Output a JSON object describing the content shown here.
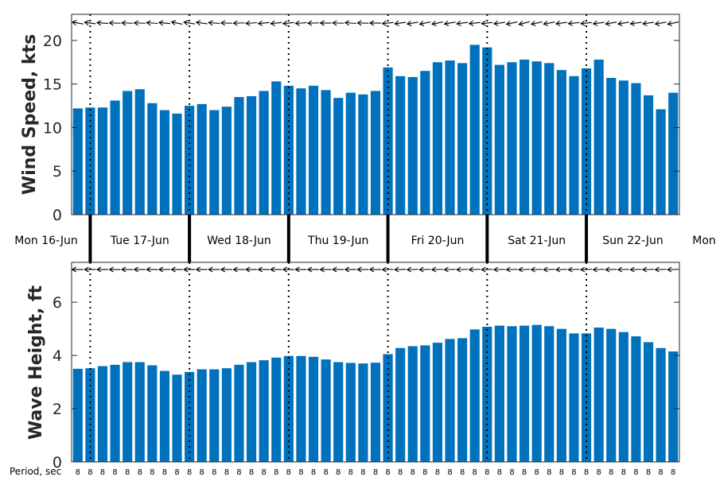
{
  "chart_data": [
    {
      "type": "bar",
      "name": "wind-speed",
      "ylabel": "Wind Speed, kts",
      "ylim": [
        0,
        23
      ],
      "yticks": [
        0,
        5,
        10,
        15,
        20
      ],
      "color": "#0072BD",
      "values": [
        12.2,
        12.3,
        12.3,
        13.1,
        14.2,
        14.4,
        12.8,
        12.0,
        11.6,
        12.5,
        12.7,
        12.0,
        12.4,
        13.5,
        13.6,
        14.2,
        15.3,
        14.8,
        14.5,
        14.8,
        14.3,
        13.4,
        14.0,
        13.8,
        14.2,
        16.9,
        15.9,
        15.8,
        16.5,
        17.5,
        17.7,
        17.4,
        19.5,
        19.2,
        17.2,
        17.5,
        17.8,
        17.6,
        17.4,
        16.6,
        15.9,
        16.8,
        17.8,
        15.7,
        15.4,
        15.1,
        13.7,
        12.1,
        14.0
      ]
    },
    {
      "type": "bar",
      "name": "wave-height",
      "ylabel": "Wave Height, ft",
      "ylim": [
        0,
        7.5
      ],
      "yticks": [
        0,
        2,
        4,
        6
      ],
      "color": "#0072BD",
      "values": [
        3.5,
        3.52,
        3.6,
        3.65,
        3.75,
        3.75,
        3.63,
        3.42,
        3.28,
        3.38,
        3.48,
        3.48,
        3.52,
        3.65,
        3.75,
        3.82,
        3.92,
        3.98,
        3.98,
        3.95,
        3.85,
        3.75,
        3.72,
        3.7,
        3.73,
        4.05,
        4.28,
        4.35,
        4.38,
        4.48,
        4.62,
        4.65,
        4.98,
        5.08,
        5.12,
        5.1,
        5.12,
        5.15,
        5.1,
        5.0,
        4.83,
        4.83,
        5.05,
        5.0,
        4.88,
        4.72,
        4.5,
        4.28,
        4.15
      ]
    }
  ],
  "days": [
    "Mon 16-Jun",
    "Tue 17-Jun",
    "Wed 18-Jun",
    "Thu 19-Jun",
    "Fri 20-Jun",
    "Sat 21-Jun",
    "Sun 22-Jun",
    "Mon"
  ],
  "period_label": "Period, sec",
  "period_values": [
    8,
    8,
    8,
    8,
    8,
    8,
    8,
    8,
    8,
    8,
    8,
    8,
    8,
    8,
    8,
    8,
    8,
    8,
    8,
    8,
    8,
    8,
    8,
    8,
    8,
    8,
    8,
    8,
    8,
    8,
    8,
    8,
    8,
    8,
    8,
    8,
    8,
    8,
    8,
    8,
    8,
    8,
    8,
    8,
    8,
    8,
    8,
    8,
    8
  ],
  "wind_direction_angles": [
    10,
    8,
    5,
    2,
    2,
    2,
    4,
    6,
    12,
    10,
    8,
    4,
    2,
    -2,
    -4,
    -6,
    -6,
    -6,
    -4,
    -2,
    0,
    2,
    4,
    2,
    0,
    -6,
    -8,
    -10,
    -12,
    -12,
    -10,
    -8,
    -6,
    -6,
    -8,
    -12,
    -14,
    -12,
    -10,
    -8,
    -6,
    -6,
    -8,
    -10,
    -10,
    -8,
    -8,
    -10,
    -12
  ],
  "wave_direction_angles": [
    0,
    0,
    0,
    0,
    0,
    0,
    0,
    0,
    0,
    0,
    0,
    0,
    0,
    0,
    0,
    0,
    0,
    0,
    0,
    0,
    0,
    0,
    0,
    0,
    0,
    -2,
    -2,
    -2,
    -2,
    -2,
    -2,
    -2,
    -2,
    -2,
    -2,
    -2,
    -2,
    -2,
    -2,
    -2,
    -2,
    -2,
    -2,
    -2,
    -2,
    -2,
    -2,
    -2,
    -2
  ]
}
